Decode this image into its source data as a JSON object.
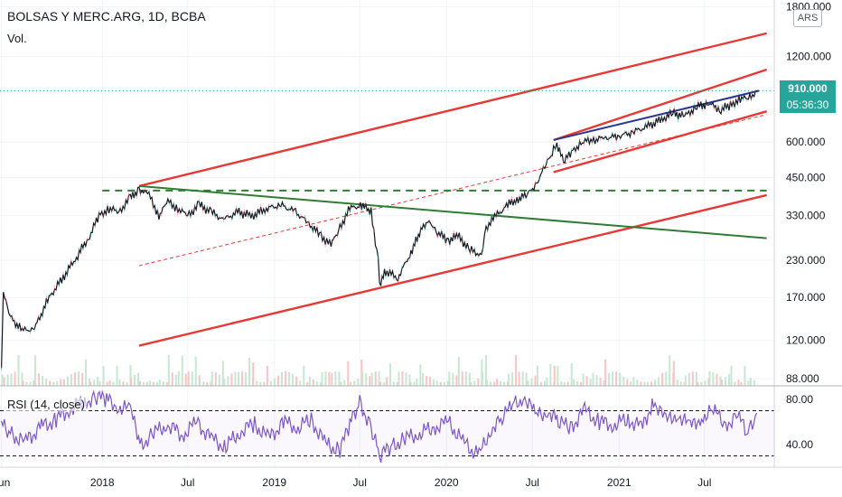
{
  "header": {
    "title": "BOLSAS Y MERC.ARG, 1D, BCBA",
    "volume_label": "Vol.",
    "rsi_label": "RSI (14, close)",
    "currency": "ARS",
    "current_price": "910.000",
    "countdown": "05:36:30"
  },
  "chart_data": {
    "type": "line",
    "title": "BOLSAS Y MERC.ARG, 1D, BCBA",
    "price_scale": "log",
    "x_tick_labels": [
      "Jun",
      "2018",
      "Jul",
      "2019",
      "Jul",
      "2020",
      "Jul",
      "2021",
      "Jul"
    ],
    "y_tick_labels": [
      "1800.000",
      "1200.000",
      "910.000",
      "600.000",
      "450.000",
      "330.000",
      "230.000",
      "170.000",
      "120.000",
      "88.000"
    ],
    "ylim": [
      83,
      1900
    ],
    "price_series": {
      "x": [
        "2017-06-01",
        "2017-06-05",
        "2017-06-20",
        "2017-07-15",
        "2017-08-10",
        "2017-09-10",
        "2017-10-10",
        "2017-11-10",
        "2017-12-05",
        "2017-12-25",
        "2018-01-15",
        "2018-02-05",
        "2018-03-01",
        "2018-03-20",
        "2018-04-10",
        "2018-05-01",
        "2018-05-20",
        "2018-06-10",
        "2018-07-01",
        "2018-07-25",
        "2018-08-20",
        "2018-09-15",
        "2018-10-15",
        "2018-11-15",
        "2018-12-15",
        "2019-01-15",
        "2019-02-15",
        "2019-03-15",
        "2019-04-10",
        "2019-05-01",
        "2019-05-20",
        "2019-06-10",
        "2019-07-05",
        "2019-07-25",
        "2019-08-09",
        "2019-08-12",
        "2019-08-25",
        "2019-09-20",
        "2019-10-15",
        "2019-10-28",
        "2019-11-10",
        "2019-11-25",
        "2019-12-10",
        "2020-01-05",
        "2020-01-25",
        "2020-02-20",
        "2020-03-15",
        "2020-03-25",
        "2020-04-15",
        "2020-05-10",
        "2020-06-01",
        "2020-06-20",
        "2020-07-10",
        "2020-07-30",
        "2020-08-15",
        "2020-08-22",
        "2020-09-05",
        "2020-09-25",
        "2020-10-15",
        "2020-11-05",
        "2020-12-01",
        "2021-01-01",
        "2021-01-30",
        "2021-03-01",
        "2021-04-01",
        "2021-04-25",
        "2021-05-20",
        "2021-06-15",
        "2021-07-10",
        "2021-08-05",
        "2021-08-25",
        "2021-09-15",
        "2021-10-05",
        "2021-10-20"
      ],
      "close": [
        95,
        175,
        145,
        130,
        132,
        170,
        200,
        240,
        280,
        330,
        350,
        340,
        380,
        410,
        390,
        330,
        370,
        350,
        330,
        360,
        340,
        320,
        340,
        330,
        350,
        360,
        340,
        310,
        280,
        260,
        300,
        350,
        360,
        340,
        230,
        190,
        210,
        200,
        240,
        270,
        300,
        320,
        290,
        270,
        280,
        250,
        240,
        300,
        330,
        360,
        380,
        390,
        430,
        500,
        560,
        590,
        510,
        560,
        600,
        610,
        620,
        630,
        650,
        680,
        720,
        760,
        740,
        800,
        820,
        780,
        810,
        850,
        860,
        910
      ]
    },
    "rsi": {
      "ylim": [
        20,
        92
      ],
      "levels": [
        70,
        30
      ],
      "tick_labels": [
        "80.00",
        "40.00"
      ],
      "x": [
        "2017-06-01",
        "2017-06-20",
        "2017-07-20",
        "2017-08-25",
        "2017-09-25",
        "2017-10-25",
        "2017-11-25",
        "2017-12-20",
        "2018-01-10",
        "2018-02-05",
        "2018-03-01",
        "2018-03-25",
        "2018-04-20",
        "2018-05-20",
        "2018-06-20",
        "2018-07-20",
        "2018-08-20",
        "2018-09-20",
        "2018-10-20",
        "2018-11-20",
        "2018-12-20",
        "2019-01-20",
        "2019-02-20",
        "2019-03-20",
        "2019-04-20",
        "2019-05-20",
        "2019-06-10",
        "2019-07-01",
        "2019-07-25",
        "2019-08-12",
        "2019-09-05",
        "2019-10-05",
        "2019-11-05",
        "2019-12-05",
        "2020-01-05",
        "2020-02-05",
        "2020-03-10",
        "2020-04-05",
        "2020-04-25",
        "2020-05-20",
        "2020-06-15",
        "2020-07-10",
        "2020-08-05",
        "2020-08-25",
        "2020-09-20",
        "2020-10-20",
        "2020-11-20",
        "2020-12-20",
        "2021-01-20",
        "2021-02-20",
        "2021-03-15",
        "2021-04-10",
        "2021-05-05",
        "2021-06-01",
        "2021-06-25",
        "2021-07-20",
        "2021-08-15",
        "2021-09-10",
        "2021-10-01",
        "2021-10-20"
      ],
      "values": [
        58,
        50,
        42,
        56,
        62,
        72,
        78,
        82,
        80,
        74,
        70,
        40,
        50,
        58,
        48,
        60,
        45,
        38,
        52,
        58,
        45,
        60,
        55,
        62,
        40,
        35,
        58,
        78,
        55,
        30,
        38,
        45,
        50,
        55,
        60,
        42,
        30,
        55,
        62,
        75,
        82,
        65,
        70,
        60,
        55,
        70,
        60,
        58,
        62,
        55,
        80,
        60,
        68,
        55,
        65,
        70,
        58,
        65,
        50,
        68
      ]
    },
    "annotations": {
      "channel_upper": {
        "x": [
          "2018-03-20",
          "2021-11-10"
        ],
        "y": [
          420,
          1450
        ]
      },
      "channel_lower": {
        "x": [
          "2018-03-20",
          "2021-11-10"
        ],
        "y": [
          115,
          390
        ]
      },
      "channel_mid_dashed": {
        "x": [
          "2018-03-20",
          "2021-11-10"
        ],
        "y": [
          220,
          750
        ]
      },
      "small_channel_upper": {
        "x": [
          "2020-08-15",
          "2021-11-10"
        ],
        "y": [
          610,
          1080
        ]
      },
      "small_channel_lower": {
        "x": [
          "2020-08-15",
          "2021-11-10"
        ],
        "y": [
          470,
          770
        ]
      },
      "blue_trendline": {
        "x": [
          "2020-08-15",
          "2021-10-25"
        ],
        "y": [
          610,
          910
        ]
      },
      "green_trendline": {
        "x": [
          "2018-03-20",
          "2021-11-10"
        ],
        "y": [
          420,
          275
        ]
      },
      "horizontal_dashed": {
        "x": [
          "2018-01-01",
          "2021-11-10"
        ],
        "y": [
          405,
          405
        ]
      }
    },
    "colors": {
      "price": "#131722",
      "channel": "#e53935",
      "green_line": "#2e7d32",
      "blue_line": "#283593",
      "rsi": "#7e57c2",
      "current_price_badge": "#26a69a"
    }
  }
}
